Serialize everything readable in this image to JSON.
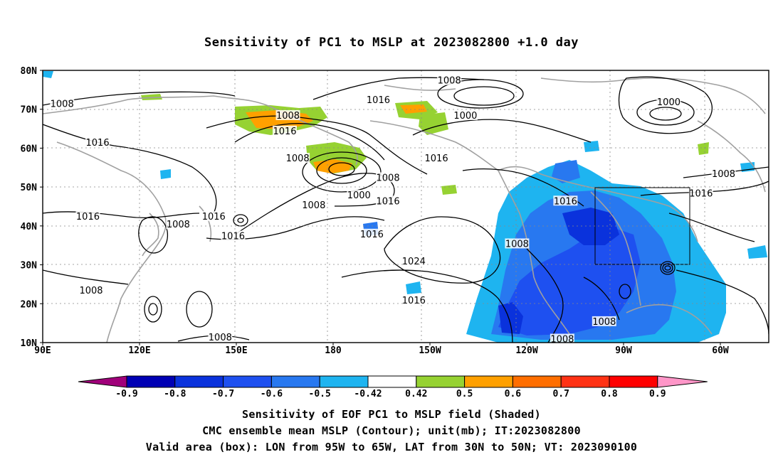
{
  "title": "Sensitivity of PC1 to MSLP at 2023082800 +1.0 day",
  "lat_labels": [
    "80N",
    "70N",
    "60N",
    "50N",
    "40N",
    "30N",
    "20N",
    "10N"
  ],
  "lon_labels": [
    "90E",
    "120E",
    "150E",
    "180",
    "150W",
    "120W",
    "90W",
    "60W"
  ],
  "contour_labels": [
    {
      "text": "1008",
      "lon": 96,
      "lat": 71.5
    },
    {
      "text": "1016",
      "lon": 107,
      "lat": 61.5
    },
    {
      "text": "1016",
      "lon": 104,
      "lat": 42.5
    },
    {
      "text": "1008",
      "lon": 105,
      "lat": 23.5
    },
    {
      "text": "1008",
      "lon": 132,
      "lat": 40.5
    },
    {
      "text": "1016",
      "lon": 143,
      "lat": 42.5
    },
    {
      "text": "1016",
      "lon": 149,
      "lat": 37.5
    },
    {
      "text": "1008",
      "lon": 145,
      "lat": 11.5
    },
    {
      "text": "1008",
      "lon": 166,
      "lat": 68.5
    },
    {
      "text": "1016",
      "lon": 165,
      "lat": 64.5
    },
    {
      "text": "1008",
      "lon": 169,
      "lat": 57.5
    },
    {
      "text": "1008",
      "lon": 174,
      "lat": 45.5
    },
    {
      "text": "1000",
      "lon": 188,
      "lat": 48.0
    },
    {
      "text": "1016",
      "lon": 194,
      "lat": 72.5
    },
    {
      "text": "1008",
      "lon": 216,
      "lat": 77.5
    },
    {
      "text": "1000",
      "lon": 221,
      "lat": 68.5
    },
    {
      "text": "1008",
      "lon": 197,
      "lat": 52.5
    },
    {
      "text": "1016",
      "lon": 197,
      "lat": 46.5
    },
    {
      "text": "1016",
      "lon": 192,
      "lat": 38.0
    },
    {
      "text": "1024",
      "lon": 205,
      "lat": 31.0
    },
    {
      "text": "1016",
      "lon": 205,
      "lat": 21.0
    },
    {
      "text": "1016",
      "lon": 212,
      "lat": 57.5
    },
    {
      "text": "1008",
      "lon": 237,
      "lat": 35.5
    },
    {
      "text": "1016",
      "lon": 252,
      "lat": 46.5
    },
    {
      "text": "1008",
      "lon": 251,
      "lat": 11.0
    },
    {
      "text": "1008",
      "lon": 264,
      "lat": 15.5
    },
    {
      "text": "1000",
      "lon": 284,
      "lat": 72.0
    },
    {
      "text": "1008",
      "lon": 301,
      "lat": 53.5
    },
    {
      "text": "1016",
      "lon": 294,
      "lat": 48.5
    }
  ],
  "colorbar": {
    "labels": [
      "-0.9",
      "-0.8",
      "-0.7",
      "-0.6",
      "-0.5",
      "-0.42",
      "0.42",
      "0.5",
      "0.6",
      "0.7",
      "0.8",
      "0.9"
    ],
    "colors": [
      "#a0007a",
      "#0000b4",
      "#0a32dc",
      "#1e50f0",
      "#2878f0",
      "#1eb4f0",
      "#ffffff",
      "#96d232",
      "#ffa000",
      "#ff6e00",
      "#ff3214",
      "#ff0000",
      "#ff96c8"
    ]
  },
  "captions": [
    "Sensitivity of EOF PC1 to MSLP field (Shaded)",
    "CMC ensemble mean MSLP (Contour); unit(mb); IT:2023082800",
    "Valid area (box): LON from 95W to 65W, LAT from 30N to 50N; VT: 2023090100"
  ]
}
